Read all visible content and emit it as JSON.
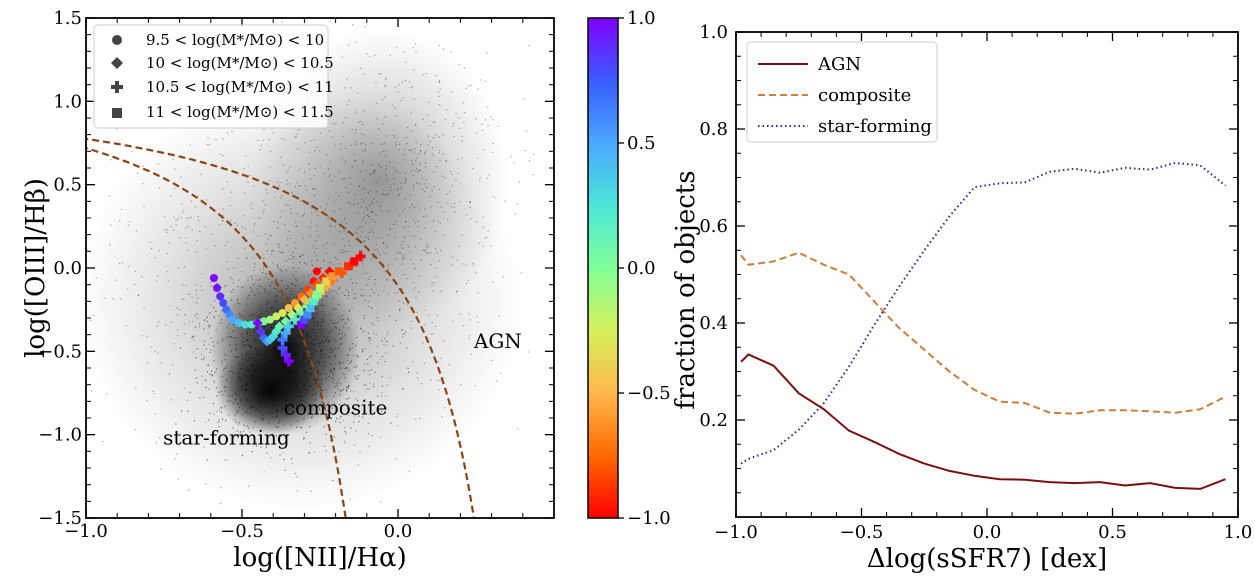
{
  "chart_data": [
    {
      "type": "scatter",
      "xlabel": "log([NII]/Hα)",
      "ylabel": "log([OIII]/Hβ)",
      "xlim": [
        -1.0,
        0.5
      ],
      "ylim": [
        -1.5,
        1.5
      ],
      "x_ticks": [
        -1.0,
        -0.5,
        0.0
      ],
      "x_tick_labels": [
        "−1.0",
        "−0.5",
        "0.0"
      ],
      "y_ticks": [
        -1.5,
        -1.0,
        -0.5,
        0.0,
        0.5,
        1.0,
        1.5
      ],
      "y_tick_labels": [
        "−1.5",
        "−1.0",
        "−0.5",
        "0.0",
        "0.5",
        "1.0",
        "1.5"
      ],
      "region_labels": [
        {
          "text": "AGN",
          "x": 0.32,
          "y": -0.48
        },
        {
          "text": "composite",
          "x": -0.2,
          "y": -0.88
        },
        {
          "text": "star-forming",
          "x": -0.55,
          "y": -1.06
        }
      ],
      "legend": [
        {
          "marker": "circle",
          "label": "9.5 < log(M*/M⊙) < 10"
        },
        {
          "marker": "diamond",
          "label": "10 < log(M*/M⊙) < 10.5"
        },
        {
          "marker": "plus",
          "label": "10.5 < log(M*/M⊙) < 11"
        },
        {
          "marker": "square",
          "label": "11 < log(M*/M⊙) < 11.5"
        }
      ],
      "legend_position": "top-left",
      "colorbar": {
        "range": [
          -1.0,
          1.0
        ],
        "ticks": [
          -1.0,
          -0.5,
          0.0,
          0.5,
          1.0
        ],
        "tick_labels": [
          "−1.0",
          "−0.5",
          "0.0",
          "0.5",
          "1.0"
        ]
      },
      "demarcation_colors": "#8b4513",
      "background_color": "#000000",
      "series": [
        {
          "marker": "circle",
          "points": [
            {
              "x": -0.59,
              "y": -0.06,
              "c": 1.0
            },
            {
              "x": -0.58,
              "y": -0.12,
              "c": 0.95
            },
            {
              "x": -0.57,
              "y": -0.17,
              "c": 0.88
            },
            {
              "x": -0.56,
              "y": -0.21,
              "c": 0.8
            },
            {
              "x": -0.55,
              "y": -0.25,
              "c": 0.7
            },
            {
              "x": -0.54,
              "y": -0.28,
              "c": 0.6
            },
            {
              "x": -0.53,
              "y": -0.31,
              "c": 0.5
            },
            {
              "x": -0.51,
              "y": -0.33,
              "c": 0.4
            },
            {
              "x": -0.49,
              "y": -0.34,
              "c": 0.3
            },
            {
              "x": -0.47,
              "y": -0.34,
              "c": 0.2
            },
            {
              "x": -0.45,
              "y": -0.33,
              "c": 0.1
            },
            {
              "x": -0.43,
              "y": -0.32,
              "c": 0.0
            },
            {
              "x": -0.41,
              "y": -0.31,
              "c": -0.1
            },
            {
              "x": -0.39,
              "y": -0.29,
              "c": -0.2
            },
            {
              "x": -0.37,
              "y": -0.27,
              "c": -0.3
            },
            {
              "x": -0.35,
              "y": -0.24,
              "c": -0.45
            },
            {
              "x": -0.33,
              "y": -0.21,
              "c": -0.6
            },
            {
              "x": -0.31,
              "y": -0.17,
              "c": -0.75
            },
            {
              "x": -0.29,
              "y": -0.13,
              "c": -0.85
            },
            {
              "x": -0.27,
              "y": -0.08,
              "c": -0.95
            },
            {
              "x": -0.26,
              "y": -0.02,
              "c": -1.0
            }
          ]
        },
        {
          "marker": "diamond",
          "points": [
            {
              "x": -0.45,
              "y": -0.33,
              "c": 1.0
            },
            {
              "x": -0.44,
              "y": -0.38,
              "c": 0.85
            },
            {
              "x": -0.43,
              "y": -0.42,
              "c": 0.7
            },
            {
              "x": -0.42,
              "y": -0.44,
              "c": 0.55
            },
            {
              "x": -0.41,
              "y": -0.43,
              "c": 0.4
            },
            {
              "x": -0.4,
              "y": -0.41,
              "c": 0.3
            },
            {
              "x": -0.39,
              "y": -0.38,
              "c": 0.2
            },
            {
              "x": -0.38,
              "y": -0.35,
              "c": 0.1
            },
            {
              "x": -0.36,
              "y": -0.32,
              "c": 0.0
            },
            {
              "x": -0.34,
              "y": -0.28,
              "c": -0.15
            },
            {
              "x": -0.32,
              "y": -0.24,
              "c": -0.3
            },
            {
              "x": -0.3,
              "y": -0.19,
              "c": -0.5
            },
            {
              "x": -0.28,
              "y": -0.15,
              "c": -0.65
            },
            {
              "x": -0.26,
              "y": -0.1,
              "c": -0.8
            },
            {
              "x": -0.24,
              "y": -0.06,
              "c": -0.9
            },
            {
              "x": -0.22,
              "y": -0.02,
              "c": -1.0
            }
          ]
        },
        {
          "marker": "plus",
          "points": [
            {
              "x": -0.35,
              "y": -0.56,
              "c": 1.0
            },
            {
              "x": -0.36,
              "y": -0.52,
              "c": 0.9
            },
            {
              "x": -0.37,
              "y": -0.48,
              "c": 0.8
            },
            {
              "x": -0.37,
              "y": -0.43,
              "c": 0.65
            },
            {
              "x": -0.36,
              "y": -0.39,
              "c": 0.5
            },
            {
              "x": -0.35,
              "y": -0.35,
              "c": 0.35
            },
            {
              "x": -0.33,
              "y": -0.31,
              "c": 0.2
            },
            {
              "x": -0.31,
              "y": -0.27,
              "c": 0.05
            },
            {
              "x": -0.29,
              "y": -0.23,
              "c": -0.1
            },
            {
              "x": -0.27,
              "y": -0.19,
              "c": -0.25
            },
            {
              "x": -0.25,
              "y": -0.15,
              "c": -0.4
            },
            {
              "x": -0.23,
              "y": -0.11,
              "c": -0.55
            },
            {
              "x": -0.21,
              "y": -0.07,
              "c": -0.7
            },
            {
              "x": -0.18,
              "y": -0.03,
              "c": -0.8
            },
            {
              "x": -0.15,
              "y": 0.02,
              "c": -0.9
            },
            {
              "x": -0.12,
              "y": 0.07,
              "c": -1.0
            }
          ]
        },
        {
          "marker": "square",
          "points": [
            {
              "x": -0.31,
              "y": -0.34,
              "c": 1.0
            },
            {
              "x": -0.3,
              "y": -0.31,
              "c": 0.8
            },
            {
              "x": -0.29,
              "y": -0.28,
              "c": 0.6
            },
            {
              "x": -0.28,
              "y": -0.24,
              "c": 0.4
            },
            {
              "x": -0.27,
              "y": -0.2,
              "c": 0.2
            },
            {
              "x": -0.26,
              "y": -0.16,
              "c": 0.0
            },
            {
              "x": -0.25,
              "y": -0.12,
              "c": -0.2
            },
            {
              "x": -0.23,
              "y": -0.08,
              "c": -0.4
            },
            {
              "x": -0.21,
              "y": -0.05,
              "c": -0.6
            },
            {
              "x": -0.19,
              "y": -0.02,
              "c": -0.8
            },
            {
              "x": -0.16,
              "y": 0.01,
              "c": -0.9
            },
            {
              "x": -0.14,
              "y": 0.04,
              "c": -1.0
            }
          ]
        }
      ]
    },
    {
      "type": "line",
      "xlabel": "Δlog(sSFR7) [dex]",
      "ylabel": "fraction of objects",
      "xlim": [
        -1.0,
        1.0
      ],
      "ylim": [
        0.0,
        1.0
      ],
      "x_ticks": [
        -1.0,
        -0.5,
        0.0,
        0.5,
        1.0
      ],
      "x_tick_labels": [
        "−1.0",
        "−0.5",
        "0.0",
        "0.5",
        "1.0"
      ],
      "y_ticks": [
        0.2,
        0.4,
        0.6,
        0.8,
        1.0
      ],
      "y_tick_labels": [
        "0.2",
        "0.4",
        "0.6",
        "0.8",
        "1.0"
      ],
      "legend_position": "top-left",
      "x": [
        -0.98,
        -0.95,
        -0.85,
        -0.75,
        -0.65,
        -0.55,
        -0.45,
        -0.35,
        -0.25,
        -0.15,
        -0.05,
        0.05,
        0.15,
        0.25,
        0.35,
        0.45,
        0.55,
        0.65,
        0.75,
        0.85,
        0.95
      ],
      "series": [
        {
          "name": "AGN",
          "color": "#7a1010",
          "dash": "solid",
          "values": [
            0.32,
            0.335,
            0.312,
            0.255,
            0.222,
            0.178,
            0.155,
            0.13,
            0.11,
            0.095,
            0.085,
            0.078,
            0.077,
            0.072,
            0.07,
            0.072,
            0.065,
            0.07,
            0.06,
            0.058,
            0.078
          ]
        },
        {
          "name": "composite",
          "color": "#c8803c",
          "dash": "dashed",
          "values": [
            0.54,
            0.52,
            0.527,
            0.545,
            0.52,
            0.5,
            0.445,
            0.39,
            0.345,
            0.3,
            0.262,
            0.238,
            0.235,
            0.215,
            0.213,
            0.22,
            0.22,
            0.218,
            0.215,
            0.222,
            0.248
          ]
        },
        {
          "name": "star-forming",
          "color": "#2a2a8c",
          "dash": "dotted",
          "values": [
            0.11,
            0.12,
            0.138,
            0.18,
            0.235,
            0.31,
            0.395,
            0.475,
            0.55,
            0.62,
            0.68,
            0.688,
            0.69,
            0.712,
            0.718,
            0.71,
            0.72,
            0.716,
            0.73,
            0.725,
            0.683
          ]
        }
      ]
    }
  ]
}
